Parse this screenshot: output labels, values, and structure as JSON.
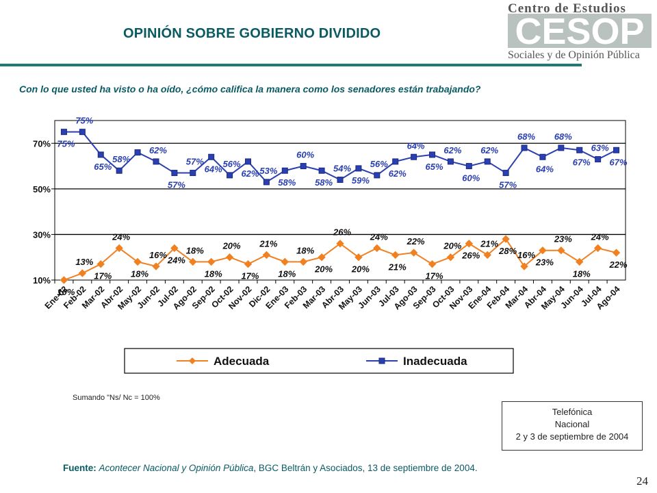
{
  "header": {
    "title": "OPINIÓN SOBRE GOBIERNO DIVIDIDO",
    "logo_top": "Centro de Estudios",
    "logo_big": "CESOP",
    "logo_bottom": "Sociales y de Opinión Pública"
  },
  "question": "Con lo que usted ha visto o ha oído, ¿cómo califica la manera como los senadores están trabajando?",
  "note": "Sumando \"Ns/ Nc = 100%",
  "source_box": {
    "line1": "Telefónica",
    "line2": "Nacional",
    "line3": "2 y 3 de septiembre de 2004"
  },
  "footer": {
    "label": "Fuente:",
    "italic": "Acontecer Nacional y Opinión Pública",
    "rest": ", BGC Beltrán y Asociados, 13 de septiembre de 2004."
  },
  "page_number": "24",
  "colors": {
    "adecuada": "#f08020",
    "inadecuada": "#2a3fb0",
    "title": "#0a5a63"
  },
  "chart_data": {
    "type": "line",
    "categories": [
      "Ene-02",
      "Feb-02",
      "Mar-02",
      "Abr-02",
      "May-02",
      "Jun-02",
      "Jul-02",
      "Ago-02",
      "Sep-02",
      "Oct-02",
      "Nov-02",
      "Dic-02",
      "Ene-03",
      "Feb-03",
      "Mar-03",
      "Abr-03",
      "May-03",
      "Jun-03",
      "Jul-03",
      "Ago-03",
      "Sep-03",
      "Oct-03",
      "Nov-03",
      "Ene-04",
      "Feb-04",
      "Mar-04",
      "Abr-04",
      "May-04",
      "Jun-04",
      "Jul-04",
      "Ago-04"
    ],
    "ylim": [
      10,
      80
    ],
    "yticks": [
      10,
      30,
      50,
      70
    ],
    "ytick_labels": [
      "10%",
      "30%",
      "50%",
      "70%"
    ],
    "legend_position": "bottom",
    "series": [
      {
        "name": "Adecuada",
        "values": [
          10,
          13,
          17,
          24,
          18,
          16,
          24,
          18,
          18,
          20,
          17,
          21,
          18,
          18,
          20,
          26,
          20,
          24,
          21,
          22,
          17,
          20,
          26,
          21,
          28,
          16,
          23,
          23,
          18,
          24,
          22
        ],
        "labels": [
          "10%",
          "13%",
          "17%",
          "24%",
          "18%",
          "16%",
          "24%",
          "18%",
          "18%",
          "20%",
          "17%",
          "21%",
          "18%",
          "18%",
          "20%",
          "26%",
          "20%",
          "24%",
          "21%",
          "22%",
          "17%",
          "20%",
          "26%",
          "21%",
          "28%",
          "16%",
          "23%",
          "23%",
          "18%",
          "24%",
          "22%"
        ]
      },
      {
        "name": "Inadecuada",
        "values": [
          75,
          75,
          65,
          58,
          66,
          62,
          57,
          57,
          64,
          56,
          62,
          53,
          58,
          60,
          58,
          54,
          59,
          56,
          62,
          64,
          65,
          62,
          60,
          62,
          57,
          68,
          64,
          68,
          67,
          63,
          67
        ],
        "labels": [
          "75%",
          "75%",
          "65%",
          "58%",
          "",
          "62%",
          "57%",
          "57%",
          "64%",
          "56%",
          "62%",
          "53%",
          "58%",
          "60%",
          "58%",
          "54%",
          "59%",
          "56%",
          "62%",
          "64%",
          "65%",
          "62%",
          "60%",
          "62%",
          "57%",
          "68%",
          "64%",
          "68%",
          "67%",
          "63%",
          "67%"
        ]
      }
    ]
  }
}
